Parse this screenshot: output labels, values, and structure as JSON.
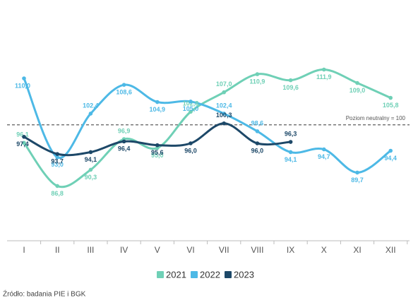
{
  "chart_data": {
    "type": "line",
    "categories": [
      "I",
      "II",
      "III",
      "IV",
      "V",
      "VI",
      "VII",
      "VIII",
      "IX",
      "X",
      "XI",
      "XII"
    ],
    "series": [
      {
        "name": "2021",
        "color": "#6fd0b6",
        "values": [
          96.1,
          86.8,
          90.3,
          96.9,
          95.0,
          102.8,
          107.0,
          110.9,
          109.6,
          111.9,
          109.0,
          105.8
        ],
        "value_labels": [
          "96,1",
          "86,8",
          "90,3",
          "96,9",
          "95,0",
          "102,8",
          "107,0",
          "110,9",
          "109,6",
          "111,9",
          "109,0",
          "105,8"
        ]
      },
      {
        "name": "2022",
        "color": "#4db9e6",
        "values": [
          110.0,
          93.0,
          102.4,
          108.6,
          104.9,
          105.0,
          102.4,
          98.6,
          94.1,
          94.7,
          89.7,
          94.4
        ],
        "value_labels": [
          "110,0",
          "93,0",
          "102,4",
          "108,6",
          "104,9",
          "105,0",
          "102,4",
          "98,6",
          "94,1",
          "94,7",
          "89,7",
          "94,4"
        ]
      },
      {
        "name": "2023",
        "color": "#1d4868",
        "values": [
          97.4,
          93.7,
          94.1,
          96.4,
          95.6,
          96.0,
          100.3,
          96.0,
          96.3,
          null,
          null,
          null
        ],
        "value_labels": [
          "97,4",
          "93,7",
          "94,1",
          "96,4",
          "95,6",
          "96,0",
          "100,3",
          "96,0",
          "96,3",
          null,
          null,
          null
        ]
      }
    ],
    "ylim": [
      75,
      117
    ],
    "reference_line": {
      "value": 100,
      "label": "Poziom neutralny = 100"
    },
    "source": "Źródło: badania PIE i BGK"
  }
}
